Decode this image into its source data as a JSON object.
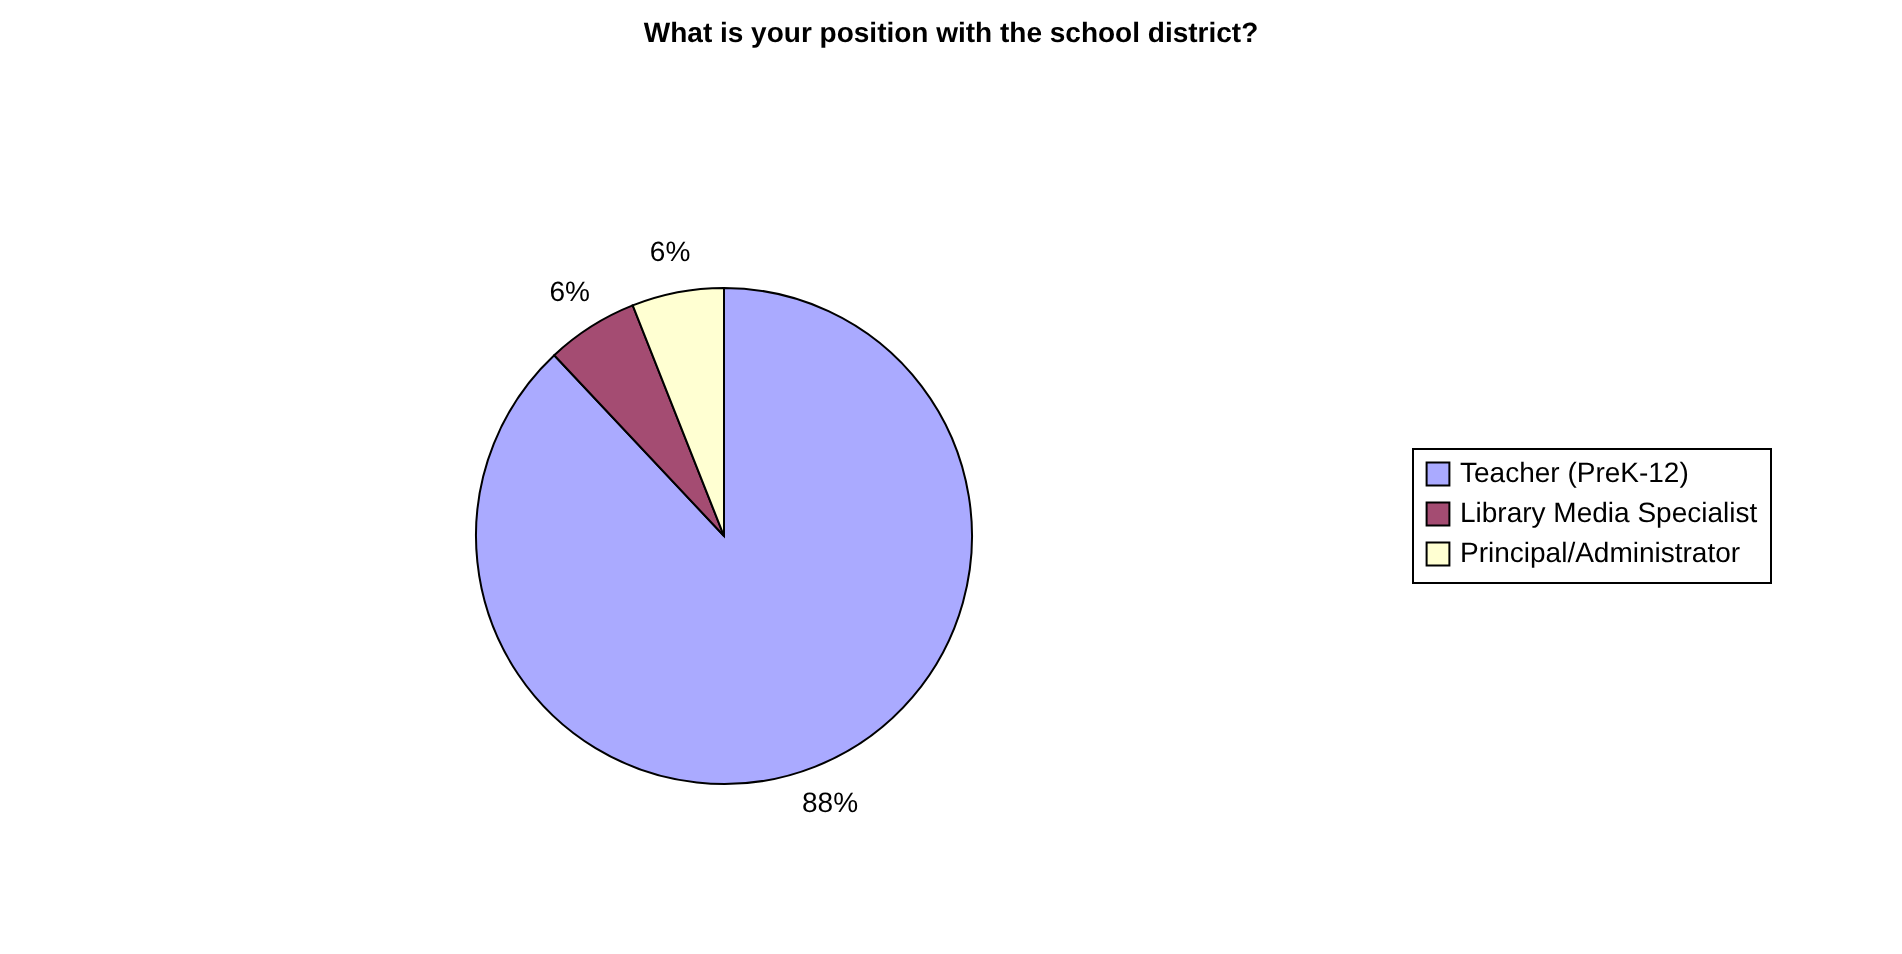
{
  "chart_data": {
    "type": "pie",
    "title": "What is your position with the school district?",
    "categories": [
      "Teacher (PreK-12)",
      "Library Media Specialist",
      "Principal/Administrator"
    ],
    "values": [
      88,
      6,
      6
    ],
    "colors": [
      "#aaaaff",
      "#a44c72",
      "#ffffd2"
    ],
    "value_labels": [
      "88%",
      "6%",
      "6%"
    ],
    "legend": "right"
  }
}
